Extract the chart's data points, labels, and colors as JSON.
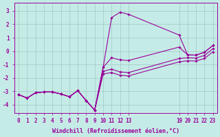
{
  "xlabel": "Windchill (Refroidissement éolien,°C)",
  "background_color": "#c5ebe6",
  "grid_color": "#a0c8c4",
  "line_color": "#990099",
  "xlim": [
    -0.5,
    23.5
  ],
  "ylim": [
    -4.6,
    3.6
  ],
  "xticks": [
    0,
    1,
    2,
    3,
    4,
    5,
    6,
    7,
    8,
    9,
    10,
    11,
    12,
    13,
    19,
    20,
    21,
    22,
    23
  ],
  "yticks": [
    -4,
    -3,
    -2,
    -1,
    0,
    1,
    2,
    3
  ],
  "x_vals": [
    0,
    1,
    2,
    3,
    4,
    5,
    6,
    7,
    8,
    9,
    10,
    11,
    12,
    13,
    19,
    20,
    21,
    22,
    23
  ],
  "series": {
    "main_jagged": [
      -3.25,
      -3.5,
      -3.1,
      -3.05,
      -3.05,
      -3.2,
      -3.4,
      -2.95,
      -3.7,
      -4.4,
      -1.2,
      2.5,
      2.9,
      2.75,
      1.2,
      -0.28,
      -0.3,
      -0.08,
      0.42
    ],
    "line2": [
      -3.25,
      -3.5,
      -3.1,
      -3.05,
      -3.05,
      -3.2,
      -3.4,
      -2.95,
      -3.7,
      -4.4,
      -1.2,
      -0.5,
      -0.65,
      -0.7,
      0.3,
      -0.28,
      -0.3,
      -0.08,
      0.42
    ],
    "line3": [
      -3.25,
      -3.5,
      -3.1,
      -3.05,
      -3.05,
      -3.2,
      -3.4,
      -2.95,
      -3.7,
      -4.4,
      -1.5,
      -1.35,
      -1.55,
      -1.6,
      -0.55,
      -0.5,
      -0.52,
      -0.32,
      0.18
    ],
    "line4": [
      -3.25,
      -3.5,
      -3.1,
      -3.05,
      -3.05,
      -3.2,
      -3.4,
      -2.95,
      -3.7,
      -4.4,
      -1.7,
      -1.6,
      -1.8,
      -1.85,
      -0.8,
      -0.72,
      -0.74,
      -0.55,
      -0.05
    ]
  },
  "xlabel_fontsize": 6.0,
  "tick_fontsize": 5.5
}
